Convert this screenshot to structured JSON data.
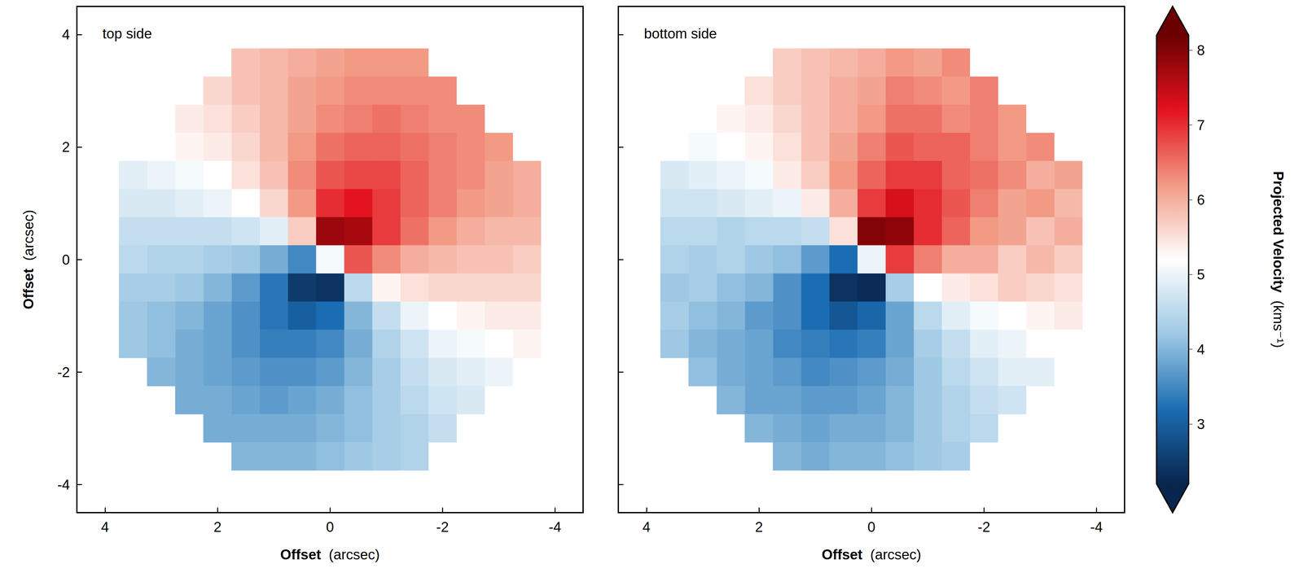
{
  "chart_data": {
    "type": "heatmap",
    "panels": [
      {
        "title": "top side",
        "x": [
          -3.5,
          -3,
          -2.5,
          -2,
          -1.5,
          -1,
          -0.5,
          0,
          0.5,
          1,
          1.5,
          2,
          2.5,
          3,
          3.5
        ],
        "y": [
          3.5,
          3,
          2.5,
          2,
          1.5,
          1,
          0.5,
          0,
          -0.5,
          -1,
          -1.5,
          -2,
          -2.5,
          -3,
          -3.5
        ],
        "values": [
          [
            null,
            null,
            null,
            null,
            6.2,
            6.2,
            6.2,
            6.1,
            6.0,
            5.9,
            5.8,
            null,
            null,
            null,
            null
          ],
          [
            null,
            null,
            null,
            6.3,
            6.3,
            6.3,
            6.3,
            6.2,
            6.1,
            5.9,
            5.8,
            5.6,
            null,
            null,
            null
          ],
          [
            null,
            null,
            6.3,
            6.3,
            6.4,
            6.5,
            6.4,
            6.3,
            6.1,
            5.9,
            5.7,
            5.5,
            5.4,
            null,
            null
          ],
          [
            null,
            6.2,
            6.3,
            6.4,
            6.5,
            6.6,
            6.6,
            6.5,
            6.2,
            5.9,
            5.6,
            5.4,
            5.3,
            5.2,
            null
          ],
          [
            6.0,
            6.1,
            6.3,
            6.4,
            6.6,
            6.8,
            6.8,
            6.7,
            6.3,
            5.8,
            5.5,
            5.2,
            5.1,
            5.0,
            4.9
          ],
          [
            6.0,
            6.1,
            6.2,
            6.4,
            6.6,
            6.9,
            7.2,
            7.0,
            6.2,
            5.6,
            5.2,
            5.0,
            4.9,
            4.8,
            4.8
          ],
          [
            5.9,
            5.9,
            6.0,
            6.2,
            6.5,
            6.9,
            7.7,
            7.8,
            5.7,
            4.9,
            4.7,
            4.6,
            4.6,
            4.6,
            4.6
          ],
          [
            5.7,
            5.8,
            5.8,
            5.9,
            6.0,
            6.3,
            6.7,
            5.1,
            3.5,
            3.9,
            4.2,
            4.3,
            4.4,
            4.4,
            4.5
          ],
          [
            5.6,
            5.6,
            5.6,
            5.6,
            5.5,
            5.3,
            4.5,
            2.4,
            2.5,
            3.3,
            3.7,
            4.0,
            4.2,
            4.3,
            4.3
          ],
          [
            5.4,
            5.4,
            5.3,
            5.2,
            5.0,
            4.6,
            4.0,
            3.2,
            3.0,
            3.3,
            3.6,
            3.8,
            4.0,
            4.1,
            4.2
          ],
          [
            5.3,
            5.2,
            5.1,
            5.0,
            4.7,
            4.4,
            3.9,
            3.5,
            3.4,
            3.4,
            3.6,
            3.8,
            3.9,
            4.1,
            4.2
          ],
          [
            null,
            5.0,
            4.9,
            4.8,
            4.6,
            4.3,
            4.0,
            3.7,
            3.6,
            3.6,
            3.7,
            3.8,
            3.9,
            4.0,
            null
          ],
          [
            null,
            null,
            4.8,
            4.7,
            4.5,
            4.3,
            4.1,
            3.9,
            3.8,
            3.7,
            3.8,
            3.9,
            3.9,
            null,
            null
          ],
          [
            null,
            null,
            null,
            4.6,
            4.4,
            4.3,
            4.1,
            4.0,
            3.9,
            3.9,
            3.9,
            3.9,
            null,
            null,
            null
          ],
          [
            null,
            null,
            null,
            null,
            4.4,
            4.3,
            4.2,
            4.1,
            4.0,
            4.0,
            4.0,
            null,
            null,
            null,
            null
          ]
        ],
        "xlim": [
          4.5,
          -4.5
        ],
        "ylim": [
          -4.5,
          4.5
        ],
        "xticks": [
          4,
          2,
          0,
          -2,
          -4
        ],
        "yticks": [
          -4,
          -2,
          0,
          2,
          4
        ],
        "xlabel": "Offset (arcsec)",
        "ylabel": "Offset (arcsec)"
      },
      {
        "title": "bottom side",
        "x": [
          -3.5,
          -3,
          -2.5,
          -2,
          -1.5,
          -1,
          -0.5,
          0,
          0.5,
          1,
          1.5,
          2,
          2.5,
          3,
          3.5
        ],
        "y": [
          3.5,
          3,
          2.5,
          2,
          1.5,
          1,
          0.5,
          0,
          -0.5,
          -1,
          -1.5,
          -2,
          -2.5,
          -3,
          -3.5
        ],
        "values": [
          [
            null,
            null,
            null,
            null,
            6.3,
            6.1,
            6.2,
            6.0,
            5.9,
            5.8,
            5.7,
            null,
            null,
            null,
            null
          ],
          [
            null,
            null,
            null,
            6.4,
            6.2,
            6.3,
            6.4,
            6.1,
            6.0,
            5.8,
            5.7,
            5.5,
            null,
            null,
            null
          ],
          [
            null,
            null,
            6.2,
            6.4,
            6.3,
            6.5,
            6.5,
            6.2,
            6.0,
            5.8,
            5.6,
            5.4,
            5.3,
            null,
            null
          ],
          [
            null,
            6.3,
            6.2,
            6.4,
            6.6,
            6.6,
            6.7,
            6.4,
            6.1,
            5.8,
            5.5,
            5.3,
            5.2,
            5.1,
            null
          ],
          [
            6.1,
            6.0,
            6.3,
            6.5,
            6.6,
            6.9,
            6.9,
            6.6,
            6.2,
            5.7,
            5.4,
            5.1,
            5.0,
            4.9,
            4.8
          ],
          [
            5.9,
            6.2,
            6.1,
            6.4,
            6.7,
            7.0,
            7.3,
            6.9,
            6.0,
            5.4,
            5.0,
            4.9,
            4.8,
            4.7,
            4.7
          ],
          [
            6.0,
            5.8,
            6.1,
            6.2,
            6.6,
            7.0,
            7.9,
            8.0,
            5.5,
            4.6,
            4.5,
            4.5,
            4.4,
            4.5,
            4.5
          ],
          [
            5.7,
            5.9,
            5.7,
            6.0,
            6.0,
            6.4,
            6.9,
            5.0,
            3.2,
            3.7,
            4.1,
            4.2,
            4.4,
            4.3,
            4.4
          ],
          [
            5.5,
            5.6,
            5.7,
            5.5,
            5.4,
            5.2,
            4.3,
            2.3,
            2.4,
            3.2,
            3.6,
            4.0,
            4.1,
            4.3,
            4.2
          ],
          [
            5.4,
            5.3,
            5.2,
            5.1,
            4.9,
            4.5,
            3.8,
            3.1,
            2.9,
            3.2,
            3.6,
            3.7,
            4.0,
            4.1,
            4.3
          ],
          [
            5.2,
            5.2,
            5.0,
            4.9,
            4.6,
            4.3,
            3.8,
            3.4,
            3.3,
            3.4,
            3.5,
            3.8,
            3.9,
            4.0,
            4.2
          ],
          [
            null,
            4.9,
            4.9,
            4.7,
            4.5,
            4.2,
            3.9,
            3.7,
            3.6,
            3.5,
            3.7,
            3.8,
            3.9,
            4.1,
            null
          ],
          [
            null,
            null,
            4.7,
            4.6,
            4.4,
            4.2,
            4.0,
            3.8,
            3.7,
            3.7,
            3.8,
            3.8,
            4.0,
            null,
            null
          ],
          [
            null,
            null,
            null,
            4.5,
            4.4,
            4.2,
            4.0,
            3.9,
            3.9,
            3.8,
            3.9,
            4.0,
            null,
            null,
            null
          ],
          [
            null,
            null,
            null,
            null,
            4.3,
            4.2,
            4.1,
            4.0,
            4.0,
            3.9,
            4.0,
            null,
            null,
            null,
            null
          ]
        ],
        "xlim": [
          4.5,
          -4.5
        ],
        "ylim": [
          -4.5,
          4.5
        ],
        "xticks": [
          4,
          2,
          0,
          -2,
          -4
        ],
        "yticks": [
          -4,
          -2,
          0,
          2,
          4
        ],
        "xlabel": "Offset (arcsec)",
        "tick_labels": "x"
      }
    ],
    "colorbar": {
      "label": "Projected Velocity (kms⁻¹)",
      "range": [
        2.2,
        8.2
      ],
      "ticks": [
        3,
        4,
        5,
        6,
        7,
        8
      ]
    }
  }
}
